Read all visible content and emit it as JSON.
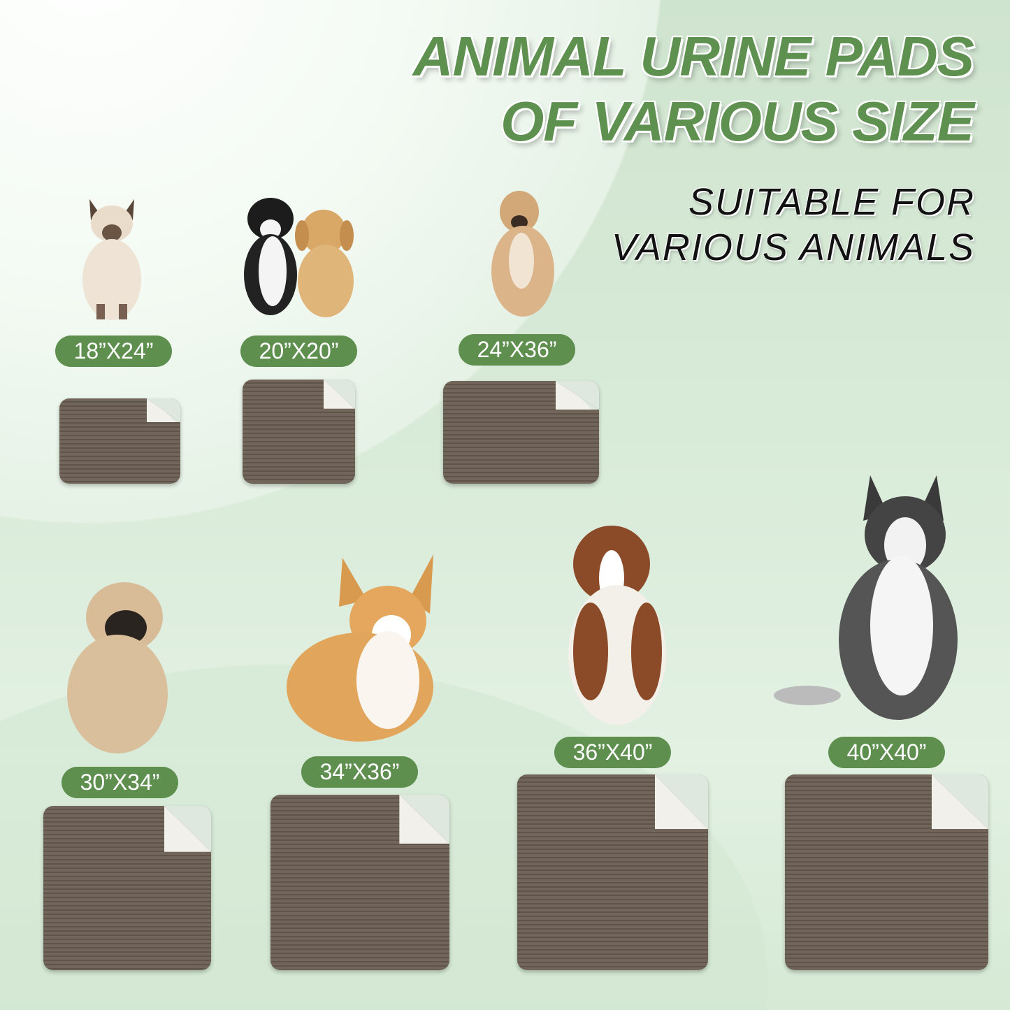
{
  "header": {
    "title_line1": "ANIMAL URINE PADS",
    "title_line2": "OF VARIOUS SIZE",
    "subtitle_line1": "SUITABLE FOR",
    "subtitle_line2": "VARIOUS ANIMALS"
  },
  "colors": {
    "accent_green": "#5e8f4f",
    "pad_brown": "#6b6054",
    "background": "#d9ebd9"
  },
  "sizes": [
    {
      "label": "18”X24”",
      "animal": "siamese-cat"
    },
    {
      "label": "20”X20”",
      "animal": "cat-and-puppy"
    },
    {
      "label": "24”X36”",
      "animal": "mixed-breed-dog"
    },
    {
      "label": "30”X34”",
      "animal": "pug"
    },
    {
      "label": "34”X36”",
      "animal": "corgi"
    },
    {
      "label": "36”X40”",
      "animal": "australian-shepherd"
    },
    {
      "label": "40”X40”",
      "animal": "husky"
    }
  ]
}
